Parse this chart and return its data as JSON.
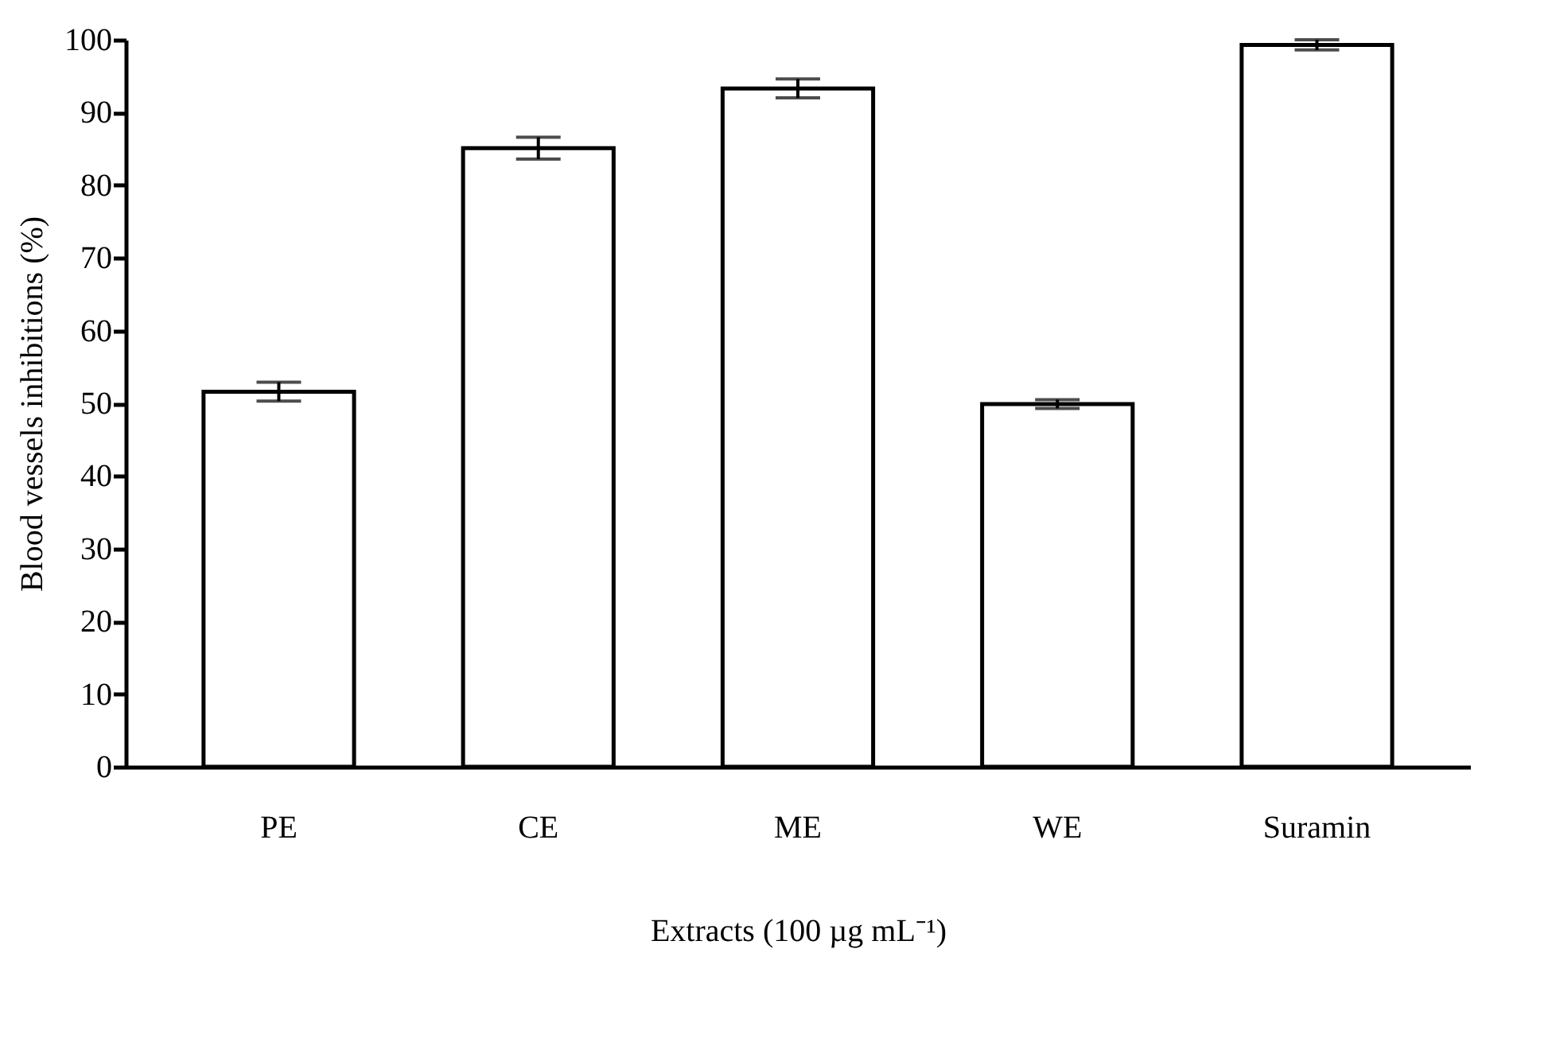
{
  "chart_data": {
    "type": "bar",
    "xlabel": "Extracts (100 µg mL⁻¹)",
    "ylabel": "Blood vessels inhibitions (%)",
    "categories": [
      "PE",
      "CE",
      "ME",
      "WE",
      "Suramin"
    ],
    "values": [
      51.6,
      85.1,
      93.3,
      49.9,
      99.3
    ],
    "errors": [
      1.3,
      1.5,
      1.3,
      0.6,
      0.7
    ],
    "color": "#ffffff",
    "ylim": [
      0,
      100
    ],
    "yticks": [
      0,
      10,
      20,
      30,
      40,
      50,
      60,
      70,
      80,
      90,
      100
    ],
    "grid": false
  }
}
